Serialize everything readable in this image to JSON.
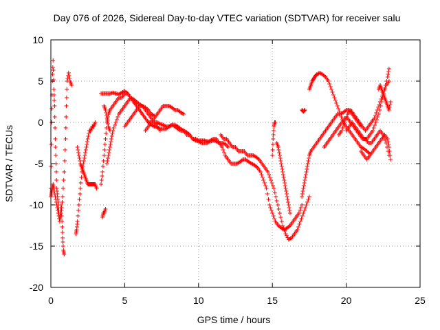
{
  "chart_data": {
    "type": "scatter",
    "title": "Day 076 of 2026, Sidereal Day-to-day VTEC variation (SDTVAR) for receiver salu",
    "xlabel": "GPS time / hours",
    "ylabel": "SDTVAR / TECUs",
    "xlim": [
      0,
      25
    ],
    "ylim": [
      -20,
      10
    ],
    "xticks": [
      0,
      5,
      10,
      15,
      20,
      25
    ],
    "yticks": [
      -20,
      -15,
      -10,
      -5,
      0,
      5,
      10
    ],
    "xtick_labels": [
      "0",
      "5",
      "10",
      "15",
      "20",
      "25"
    ],
    "ytick_labels": [
      "-20",
      "-15",
      "-10",
      "-5",
      "0",
      "5",
      "10"
    ],
    "grid": true,
    "marker": "plus",
    "color": "#ff0000",
    "series": [
      {
        "name": "s1",
        "x": [
          0.0,
          0.05,
          0.1,
          0.15,
          0.2,
          0.25,
          0.3,
          0.35,
          0.4,
          0.45,
          0.5,
          0.55,
          0.6,
          0.65,
          0.7,
          0.75,
          0.8,
          0.85,
          0.9
        ],
        "y": [
          -8,
          0,
          5,
          7.5,
          4,
          2,
          -2,
          -5,
          -8,
          -9,
          -10,
          -11,
          -12,
          -11,
          -10,
          -12,
          -14,
          -15.5,
          -16
        ]
      },
      {
        "name": "s2",
        "x": [
          0.0,
          0.05,
          0.1,
          0.15,
          0.2,
          0.3,
          0.4,
          0.5,
          0.6,
          0.7,
          0.8,
          0.9,
          1.0,
          1.05,
          1.1,
          1.2,
          1.3,
          1.4
        ],
        "y": [
          -9,
          -8.5,
          -8,
          -7.5,
          -8,
          -9,
          -10,
          -11,
          -12,
          -11,
          -9,
          -6,
          -2,
          2,
          5,
          6,
          5,
          4.5
        ]
      },
      {
        "name": "s3",
        "x": [
          1.7,
          1.75,
          1.8,
          1.9,
          2.0,
          2.1,
          2.2,
          2.3,
          2.4,
          2.5,
          2.6,
          2.7,
          2.8,
          2.9,
          3.0
        ],
        "y": [
          -13.5,
          -13,
          -12,
          -10,
          -8,
          -6,
          -5,
          -4,
          -3,
          -2,
          -1,
          -1,
          -0.5,
          -0.5,
          0
        ]
      },
      {
        "name": "s4",
        "x": [
          1.8,
          1.9,
          2.0,
          2.1,
          2.2,
          2.3,
          2.4,
          2.5,
          2.6,
          2.7,
          2.8,
          2.9,
          3.0,
          3.1
        ],
        "y": [
          -3,
          -4,
          -5,
          -5.5,
          -6,
          -6.5,
          -7,
          -7.5,
          -7.5,
          -7.5,
          -7.5,
          -7.5,
          -7.5,
          -8
        ]
      },
      {
        "name": "s5",
        "x": [
          3.5,
          3.55,
          3.6,
          3.7
        ],
        "y": [
          -11.5,
          -11,
          -11,
          -10.5
        ]
      },
      {
        "name": "s6",
        "x": [
          3.4,
          3.5,
          3.6,
          3.7,
          3.8,
          3.9,
          4.0,
          4.2,
          4.4,
          4.6,
          4.8,
          5.0,
          5.2,
          5.4,
          5.6,
          5.8,
          6.0,
          6.2,
          6.4,
          6.6,
          6.8,
          7.0,
          7.2,
          7.4,
          7.6,
          7.8,
          8.0,
          8.2,
          8.4,
          8.6,
          8.8,
          9.0,
          9.2,
          9.4,
          9.6,
          9.8,
          10.0,
          10.2,
          10.4,
          10.6,
          10.8,
          11.0,
          11.2,
          11.4,
          11.6,
          11.8,
          12.0
        ],
        "y": [
          -7.5,
          -6,
          -4,
          -2,
          0,
          1,
          1.5,
          2,
          2.5,
          3,
          3,
          3.5,
          3.5,
          3,
          2.5,
          2,
          1.5,
          1,
          0.5,
          0,
          -0.3,
          -0.5,
          -0.6,
          -0.8,
          -0.8,
          -0.8,
          -0.5,
          -0.3,
          -0.5,
          -0.8,
          -1,
          -1,
          -1.5,
          -1.5,
          -2,
          -2,
          -2.2,
          -2.2,
          -2.2,
          -2.3,
          -2.3,
          -2.2,
          -2.3,
          -2.5,
          -2.5,
          -2.6,
          -3
        ]
      },
      {
        "name": "s7",
        "x": [
          3.4,
          3.6,
          3.8,
          4.0,
          4.2,
          4.4,
          4.6,
          4.8,
          5.0,
          5.2,
          5.4,
          5.6,
          5.8,
          6.0,
          6.2,
          6.4,
          6.6,
          6.8,
          7.0
        ],
        "y": [
          3.5,
          3.5,
          3.5,
          3.5,
          3.6,
          3.5,
          3.4,
          3.6,
          3.8,
          3.5,
          3,
          2.8,
          2.5,
          2.2,
          2,
          1.8,
          1.5,
          1,
          0.8
        ]
      },
      {
        "name": "s8",
        "x": [
          3.8,
          3.9,
          4.0,
          4.1,
          4.2,
          4.4,
          4.6,
          4.8,
          5.0,
          5.2,
          5.4,
          5.6,
          5.8,
          6.0,
          6.2,
          6.4,
          6.6,
          6.8,
          7.0,
          7.2,
          7.4,
          7.6,
          7.8,
          8.0,
          8.2,
          8.4,
          8.6,
          8.8,
          9.0
        ],
        "y": [
          -5,
          -4,
          -3,
          -2,
          -1,
          0,
          1,
          1.5,
          2,
          2.5,
          3,
          2.5,
          2,
          1.5,
          1,
          0.5,
          0,
          0,
          0.5,
          1,
          1.5,
          2,
          2,
          2,
          1.8,
          1.5,
          1.5,
          1.2,
          1
        ]
      },
      {
        "name": "s9",
        "x": [
          3.6,
          3.7,
          3.8,
          3.9,
          4.0
        ],
        "y": [
          2,
          1.5,
          0.5,
          -0.5,
          -1
        ]
      },
      {
        "name": "s10",
        "x": [
          5.0,
          5.2,
          5.4,
          5.6,
          5.8,
          6.0,
          6.2,
          6.4,
          6.6,
          6.8,
          7.0,
          7.2,
          7.4
        ],
        "y": [
          -0.5,
          0,
          0.5,
          1,
          1.5,
          2,
          2,
          1.5,
          1,
          0.5,
          0,
          -0.5,
          -1
        ]
      },
      {
        "name": "s11",
        "x": [
          6.4,
          6.6,
          6.8,
          7.0,
          7.2,
          7.4,
          7.6,
          7.8,
          8.0,
          8.2,
          8.4,
          8.6,
          8.8,
          9.0,
          9.2,
          9.4,
          9.6,
          9.8,
          10.0,
          10.2,
          10.4,
          10.6,
          10.8,
          11.0,
          11.2,
          11.4,
          11.6,
          11.8,
          12.0,
          12.2,
          12.4,
          12.6,
          12.8,
          13.0,
          13.2,
          13.4,
          13.6,
          13.8,
          14.0,
          14.2,
          14.4,
          14.6,
          14.8,
          15.0,
          15.2,
          15.4,
          15.6,
          15.8,
          16.0,
          16.2,
          16.4,
          16.6,
          16.8,
          17.0
        ],
        "y": [
          -1,
          -0.5,
          0,
          0,
          0,
          -0.2,
          -0.3,
          -0.5,
          -0.5,
          -0.3,
          -0.3,
          -0.5,
          -0.8,
          -1,
          -1.2,
          -1.5,
          -2,
          -2.2,
          -2.3,
          -2.5,
          -2.5,
          -2.5,
          -2.2,
          -2,
          -2,
          -2.5,
          -3,
          -4,
          -4.5,
          -5,
          -5,
          -5,
          -4.8,
          -4.5,
          -4.5,
          -4.8,
          -5,
          -5.2,
          -5.5,
          -6,
          -7,
          -8,
          -10,
          -11,
          -12,
          -12.5,
          -12.8,
          -13,
          -12.8,
          -12.5,
          -12,
          -11.5,
          -11,
          -10
        ]
      },
      {
        "name": "s12",
        "x": [
          11.5,
          11.7,
          11.9,
          12.1,
          12.3,
          12.5,
          12.7,
          12.9,
          13.1,
          13.3,
          13.5,
          13.7,
          13.9,
          14.1,
          14.3,
          14.5,
          14.7,
          14.9,
          15.1,
          15.3,
          15.5,
          15.7,
          15.9,
          16.1,
          16.3,
          16.5,
          16.7,
          16.9,
          17.1,
          17.3,
          17.5
        ],
        "y": [
          -1.5,
          -2,
          -2,
          -2.5,
          -3,
          -3,
          -3.5,
          -3.5,
          -3.5,
          -4,
          -4,
          -4,
          -4.2,
          -4.5,
          -5,
          -5.5,
          -6,
          -7,
          -8,
          -9.5,
          -11,
          -12.5,
          -13.5,
          -14.2,
          -14,
          -13.5,
          -13,
          -12,
          -11,
          -10,
          -9
        ]
      },
      {
        "name": "s13",
        "x": [
          15.0,
          15.05,
          15.1,
          15.15,
          15.2
        ],
        "y": [
          -4,
          -2,
          -0.5,
          0,
          0
        ]
      },
      {
        "name": "s14",
        "x": [
          15.3,
          15.4,
          15.5,
          15.6,
          15.7,
          15.8,
          15.9,
          16.0,
          16.1,
          16.2
        ],
        "y": [
          -2.5,
          -3,
          -4,
          -5,
          -6,
          -7,
          -8,
          -9,
          -10,
          -11
        ]
      },
      {
        "name": "s15",
        "x": [
          17.0,
          17.1,
          17.2,
          17.3,
          17.4,
          17.5,
          17.6,
          17.8,
          18.0,
          18.2,
          18.4,
          18.6,
          18.8,
          19.0,
          19.2,
          19.4,
          19.6,
          19.8,
          20.0,
          20.2,
          20.4,
          20.6,
          20.8,
          21.0
        ],
        "y": [
          -9,
          -8,
          -7,
          -6,
          -5,
          -4,
          -3.5,
          -3,
          -2.5,
          -2,
          -1.5,
          -1,
          -0.5,
          0,
          0.5,
          1,
          1,
          1.2,
          1.5,
          1.5,
          1,
          0.5,
          0,
          -0.5
        ]
      },
      {
        "name": "s16",
        "x": [
          17.0,
          17.1,
          17.2
        ],
        "y": [
          1.5,
          1.3,
          1.5
        ]
      },
      {
        "name": "s17",
        "x": [
          17.5,
          17.6,
          17.7,
          17.8,
          17.9,
          18.0,
          18.2,
          18.4,
          18.6,
          18.8,
          19.0,
          19.2,
          19.4,
          19.6,
          19.8,
          20.0,
          20.2,
          20.4,
          20.6,
          20.8,
          21.0,
          21.2,
          21.4,
          21.6
        ],
        "y": [
          4,
          4.5,
          5,
          5.3,
          5.6,
          5.8,
          6,
          5.8,
          5.5,
          5,
          4,
          3,
          2,
          1,
          0,
          -0.5,
          -1,
          -1.5,
          -2,
          -2.5,
          -3,
          -3.2,
          -3.5,
          -3.8
        ]
      },
      {
        "name": "s18",
        "x": [
          18.5,
          18.7,
          18.9,
          19.1,
          19.3,
          19.5,
          19.7,
          19.9,
          20.1,
          20.3,
          20.5,
          20.7,
          20.9,
          21.1,
          21.3,
          21.5,
          21.7,
          21.9,
          22.1,
          22.3,
          22.5,
          22.7,
          22.9
        ],
        "y": [
          -3,
          -2.5,
          -2,
          -1.5,
          -1,
          -0.5,
          0,
          0.5,
          0.5,
          0,
          -0.5,
          -1,
          -1.5,
          -2,
          -2,
          -2.5,
          -2.5,
          -2,
          -1.5,
          -1,
          -1.5,
          -2.5,
          -4
        ]
      },
      {
        "name": "s19",
        "x": [
          19.5,
          19.7,
          19.9,
          20.1,
          20.3,
          20.5,
          20.7,
          20.9,
          21.1,
          21.3,
          21.5,
          21.7,
          21.9,
          22.1,
          22.3,
          22.5,
          22.7,
          22.9
        ],
        "y": [
          -1.5,
          -1,
          0,
          1,
          1.5,
          1,
          0.5,
          0,
          -0.5,
          -1,
          -0.5,
          0,
          0.5,
          1.5,
          2.5,
          3.5,
          4.5,
          5
        ]
      },
      {
        "name": "s20",
        "x": [
          20.0,
          20.2,
          20.4,
          20.6,
          20.8,
          21.0,
          21.2,
          21.4,
          21.6,
          21.8,
          22.0,
          22.2,
          22.4,
          22.6,
          22.8,
          22.9
        ],
        "y": [
          -1,
          -0.5,
          0,
          -0.5,
          -1,
          -1.5,
          -2,
          -2,
          -1.5,
          -1,
          0,
          1,
          2.5,
          4,
          5.5,
          6.5
        ]
      },
      {
        "name": "s21",
        "x": [
          21.0,
          21.2,
          21.4,
          21.6,
          21.8,
          22.0,
          22.2,
          22.4,
          22.6,
          22.8,
          22.9,
          23.0
        ],
        "y": [
          -3.5,
          -4,
          -4.5,
          -4,
          -3.5,
          -3,
          -2.5,
          -2,
          -1.5,
          -2,
          -3,
          -4.5
        ]
      },
      {
        "name": "s22",
        "x": [
          22.2,
          22.3,
          22.4,
          22.5,
          22.6,
          22.7,
          22.8,
          22.9,
          23.0
        ],
        "y": [
          4,
          4.5,
          4,
          3.5,
          3,
          2.5,
          2,
          1.5,
          2.5
        ]
      }
    ]
  }
}
